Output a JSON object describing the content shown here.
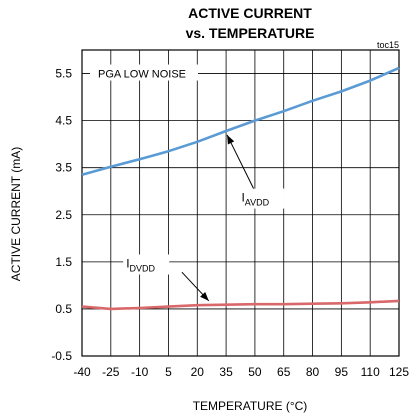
{
  "chart_data": {
    "type": "line",
    "title": [
      "ACTIVE CURRENT",
      "vs. TEMPERATURE"
    ],
    "reference": "toc15",
    "xlabel": "TEMPERATURE (°C)",
    "ylabel": "ACTIVE CURRENT (mA)",
    "xlim": [
      -40,
      125
    ],
    "ylim": [
      -0.5,
      6.0
    ],
    "x_ticks": [
      "-40",
      "-25",
      "-10",
      "5",
      "20",
      "35",
      "50",
      "65",
      "80",
      "95",
      "110",
      "125"
    ],
    "y_ticks": [
      "-0.5",
      "0.5",
      "1.5",
      "2.5",
      "3.5",
      "4.5",
      "5.5"
    ],
    "grid": true,
    "annotation": "PGA LOW NOISE",
    "series": [
      {
        "name": "IAVDD",
        "label_main": "I",
        "label_sub": "AVDD",
        "color": "#5b9bd5",
        "x": [
          -40,
          -25,
          -10,
          5,
          20,
          35,
          50,
          65,
          80,
          95,
          110,
          125
        ],
        "y": [
          3.35,
          3.52,
          3.68,
          3.85,
          4.05,
          4.28,
          4.5,
          4.7,
          4.92,
          5.12,
          5.35,
          5.62
        ]
      },
      {
        "name": "IDVDD",
        "label_main": "I",
        "label_sub": "DVDD",
        "color": "#d9686a",
        "x": [
          -40,
          -25,
          -10,
          5,
          20,
          35,
          50,
          65,
          80,
          95,
          110,
          125
        ],
        "y": [
          0.55,
          0.5,
          0.52,
          0.55,
          0.58,
          0.59,
          0.6,
          0.6,
          0.61,
          0.62,
          0.64,
          0.67
        ]
      }
    ]
  }
}
